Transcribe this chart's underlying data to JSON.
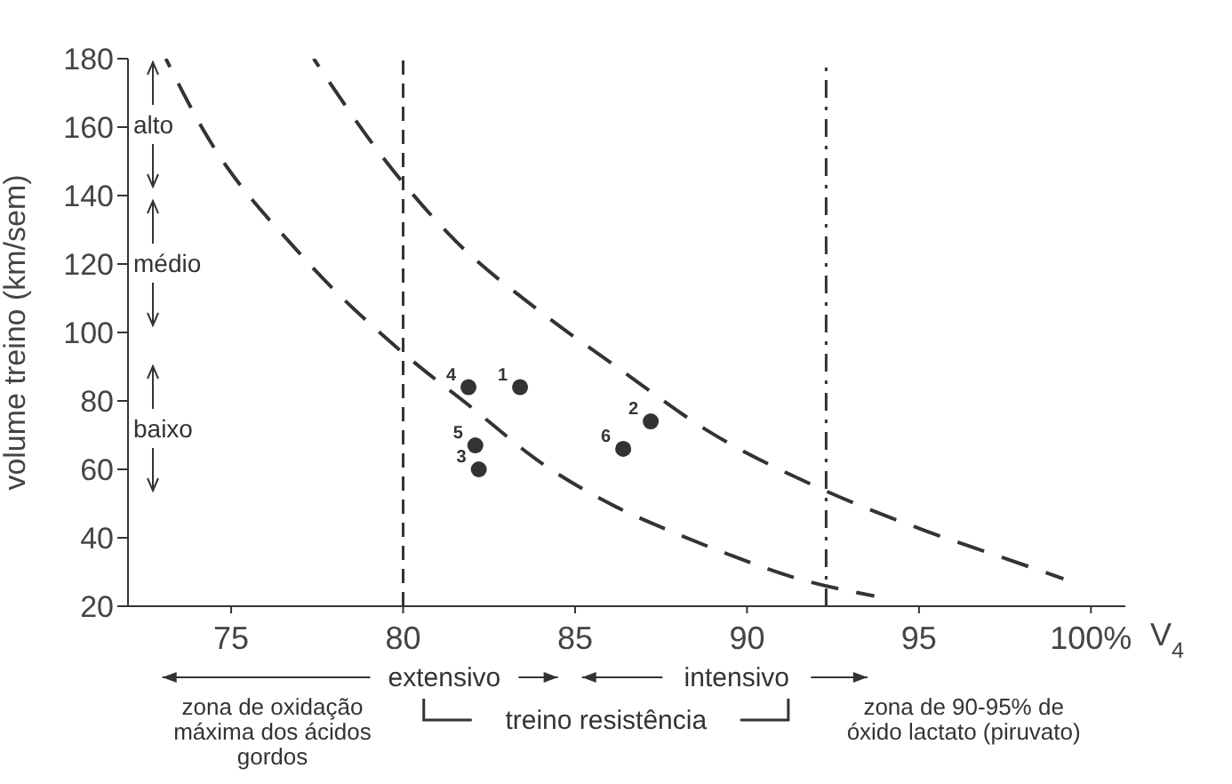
{
  "chart_data": {
    "type": "scatter",
    "xlabel": "V$_{4}$",
    "ylabel": "volume treino (km/sem)",
    "xlim": [
      72,
      101
    ],
    "ylim": [
      20,
      180
    ],
    "xticks": [
      75,
      80,
      85,
      90,
      95,
      {
        "value": 100,
        "label": "100%"
      }
    ],
    "yticks": [
      20,
      40,
      60,
      80,
      100,
      120,
      140,
      160,
      180
    ],
    "grid": false,
    "legend": false,
    "marker": "circle",
    "series": [
      {
        "color": "#333333",
        "x": [
          83.4,
          87.2,
          82.2,
          81.9,
          82.1,
          86.4
        ],
        "values": [
          84,
          74,
          60,
          84,
          67,
          66
        ]
      },
      {
        "type": "line",
        "color": "#333333",
        "line_style": "dashed",
        "marker": "none",
        "x": [
          73.1,
          74.2,
          77,
          80,
          82,
          84,
          86.2,
          88,
          89.5,
          91.5,
          93.7
        ],
        "values": [
          180,
          159,
          123,
          94,
          78,
          62,
          49,
          41,
          35,
          28,
          23
        ]
      },
      {
        "type": "line",
        "color": "#333333",
        "line_style": "dashed",
        "marker": "none",
        "x": [
          77.4,
          79.5,
          81.5,
          84,
          86.2,
          88.9,
          92,
          95.2,
          97.5,
          99.2
        ],
        "values": [
          180,
          150,
          127,
          106,
          90,
          71,
          55,
          42,
          34,
          28
        ]
      }
    ],
    "ref_lines": [
      {
        "axis": "x",
        "value": 80,
        "line_style": "dashed"
      },
      {
        "axis": "x",
        "value": 92.3,
        "line_style": "dashdot"
      }
    ],
    "annotations": [
      "alto",
      "médio",
      "baixo",
      "extensivo",
      "intensivo",
      "treino resistência",
      "zona de oxidação máxima dos ácidos gordos",
      "zona de 90-95% de óxido lactato (piruvato)",
      {
        "text": "1",
        "x": 83.4,
        "y": 84
      },
      {
        "text": "2",
        "x": 87.2,
        "y": 74
      },
      {
        "text": "3",
        "x": 82.2,
        "y": 60
      },
      {
        "text": "4",
        "x": 81.9,
        "y": 84
      },
      {
        "text": "5",
        "x": 82.1,
        "y": 67
      },
      {
        "text": "6",
        "x": 86.4,
        "y": 66
      }
    ]
  }
}
